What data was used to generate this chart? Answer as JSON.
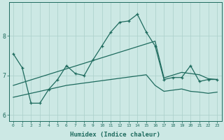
{
  "title": "",
  "xlabel": "Humidex (Indice chaleur)",
  "ylabel": "",
  "background_color": "#cce8e4",
  "grid_color": "#aacfca",
  "line_color": "#1e6b5e",
  "x_values": [
    0,
    1,
    2,
    3,
    4,
    5,
    6,
    7,
    8,
    9,
    10,
    11,
    12,
    13,
    14,
    15,
    16,
    17,
    18,
    19,
    20,
    21,
    22,
    23
  ],
  "main_line": [
    7.55,
    7.2,
    6.3,
    6.3,
    6.65,
    6.9,
    7.25,
    7.05,
    7.0,
    7.4,
    7.75,
    8.1,
    8.35,
    8.38,
    8.55,
    8.1,
    7.75,
    6.9,
    6.95,
    6.95,
    7.25,
    6.85,
    6.9,
    6.9
  ],
  "upper_line": [
    6.75,
    6.82,
    6.89,
    6.96,
    7.03,
    7.1,
    7.17,
    7.24,
    7.31,
    7.38,
    7.45,
    7.52,
    7.59,
    7.66,
    7.73,
    7.8,
    7.87,
    6.94,
    7.01,
    7.08,
    7.05,
    7.02,
    6.92,
    6.9
  ],
  "lower_line": [
    6.45,
    6.5,
    6.55,
    6.6,
    6.65,
    6.7,
    6.75,
    6.78,
    6.81,
    6.84,
    6.87,
    6.9,
    6.93,
    6.96,
    6.99,
    7.02,
    6.75,
    6.6,
    6.63,
    6.66,
    6.6,
    6.58,
    6.55,
    6.58
  ],
  "ylim": [
    5.85,
    8.85
  ],
  "yticks": [
    6,
    7,
    8
  ],
  "xlim": [
    -0.5,
    23.5
  ]
}
